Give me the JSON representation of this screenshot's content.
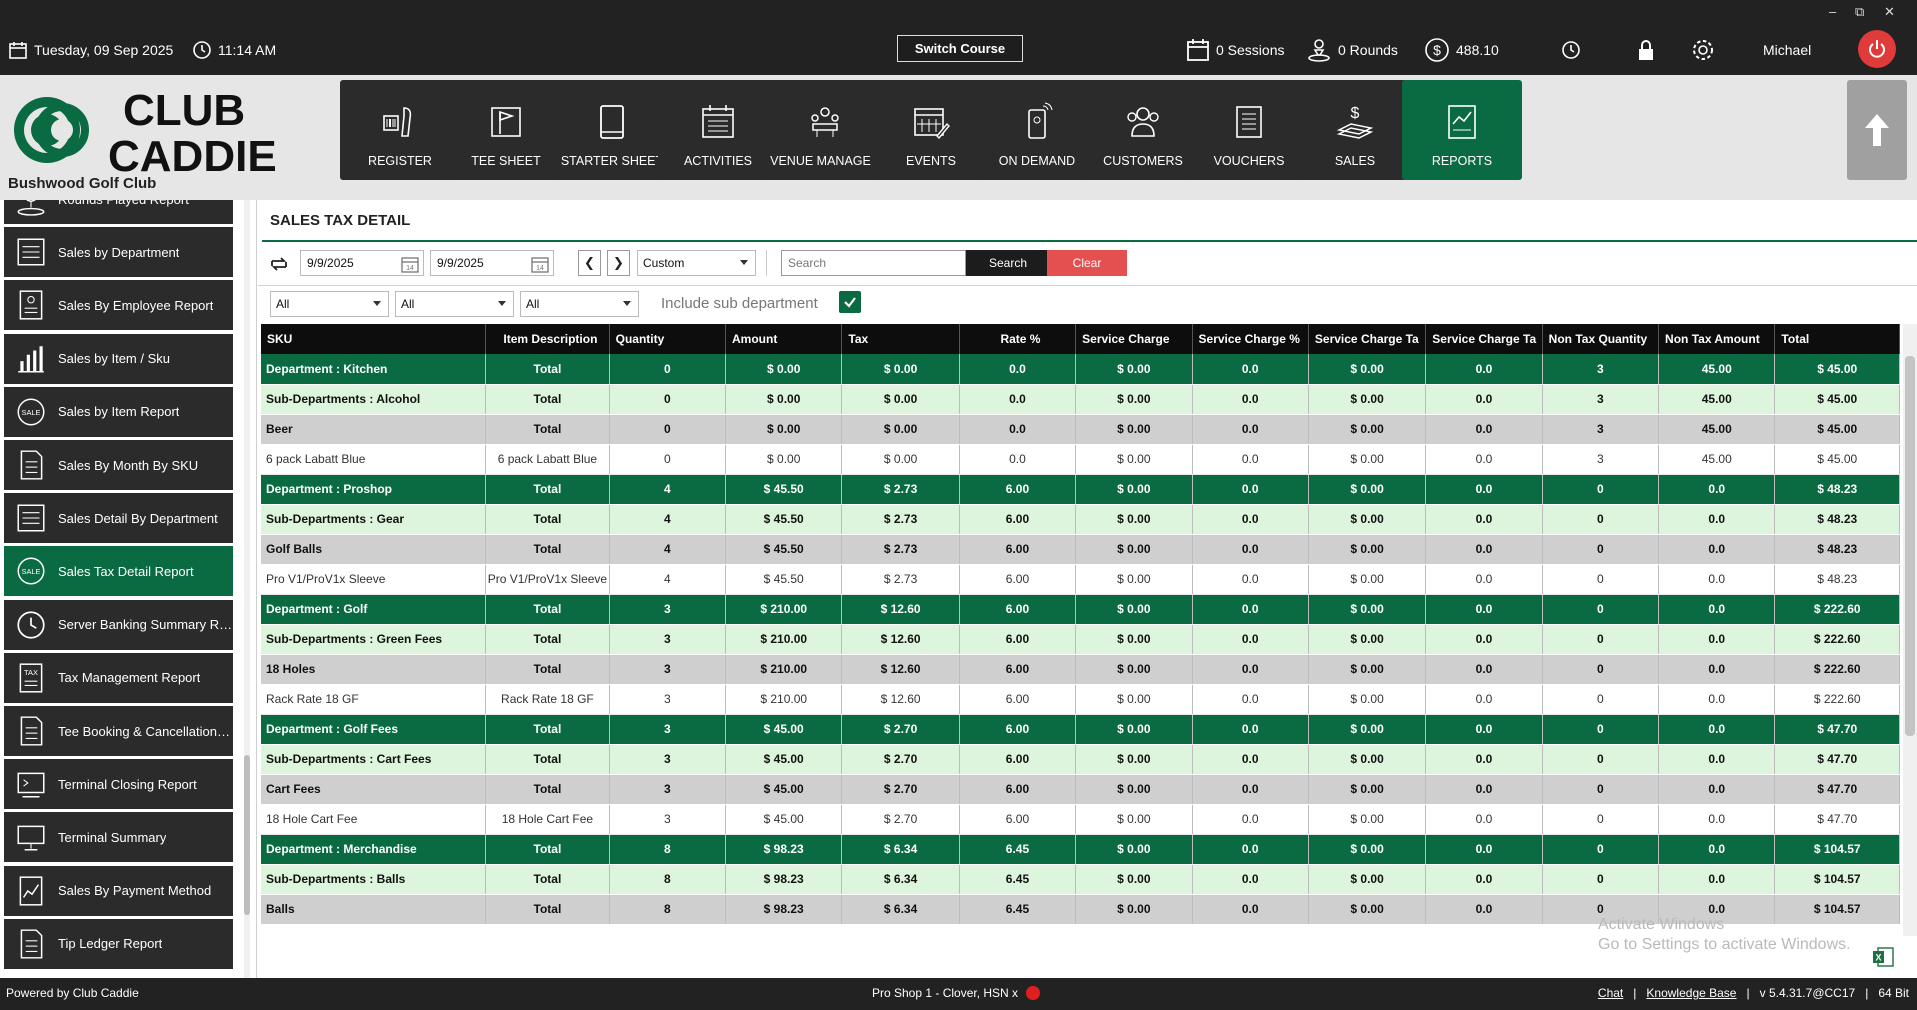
{
  "topbar": {
    "date": "Tuesday,  09 Sep 2025",
    "time": "11:14 AM",
    "switch_course": "Switch Course",
    "sessions": "0 Sessions",
    "rounds": "0 Rounds",
    "balance": "488.10",
    "user": "Michael"
  },
  "brand": {
    "logo_line1": "CLUB",
    "logo_line2": "CADDIE",
    "club_name": "Bushwood Golf Club"
  },
  "nav": [
    {
      "label": "REGISTER",
      "icon": "barcode-scanner-icon"
    },
    {
      "label": "TEE SHEET",
      "icon": "flag-icon"
    },
    {
      "label": "STARTER SHEET",
      "icon": "tablet-icon"
    },
    {
      "label": "ACTIVITIES",
      "icon": "calendar-list-icon"
    },
    {
      "label": "VENUE MANAGER",
      "icon": "venue-icon"
    },
    {
      "label": "EVENTS",
      "icon": "events-calendar-icon"
    },
    {
      "label": "ON DEMAND",
      "icon": "mobile-order-icon"
    },
    {
      "label": "CUSTOMERS",
      "icon": "customers-icon"
    },
    {
      "label": "VOUCHERS",
      "icon": "voucher-icon"
    },
    {
      "label": "SALES",
      "icon": "sales-icon"
    },
    {
      "label": "REPORTS",
      "icon": "reports-icon"
    }
  ],
  "sidebar": {
    "items": [
      {
        "label": "Rounds Played Report",
        "icon": "golf-ball-icon"
      },
      {
        "label": "Sales by Department",
        "icon": "list-icon"
      },
      {
        "label": "Sales By Employee Report",
        "icon": "employee-report-icon"
      },
      {
        "label": "Sales by Item / Sku",
        "icon": "bar-chart-icon"
      },
      {
        "label": "Sales by Item Report",
        "icon": "sale-tag-icon"
      },
      {
        "label": "Sales By Month By SKU",
        "icon": "document-icon"
      },
      {
        "label": "Sales Detail By Department",
        "icon": "list-icon"
      },
      {
        "label": "Sales Tax Detail Report",
        "icon": "sale-tag-icon"
      },
      {
        "label": "Server Banking Summary Rep...",
        "icon": "clock-icon"
      },
      {
        "label": "Tax Management Report",
        "icon": "tax-icon"
      },
      {
        "label": "Tee Booking & Cancellation R...",
        "icon": "document-icon"
      },
      {
        "label": "Terminal Closing Report",
        "icon": "terminal-icon"
      },
      {
        "label": "Terminal Summary",
        "icon": "monitor-icon"
      },
      {
        "label": "Sales By Payment Method",
        "icon": "chart-doc-icon"
      },
      {
        "label": "Tip Ledger Report",
        "icon": "document-icon"
      }
    ]
  },
  "page": {
    "title": "SALES TAX DETAIL",
    "date_from": "9/9/2025",
    "date_to": "9/9/2025",
    "range": "Custom",
    "search_placeholder": "Search",
    "search_btn": "Search",
    "clear_btn": "Clear",
    "filter1": "All",
    "filter2": "All",
    "filter3": "All",
    "include_sub": "Include sub department"
  },
  "table": {
    "columns": [
      "SKU",
      "Item Description",
      "Quantity",
      "Amount",
      "Tax",
      "Rate %",
      "Service Charge",
      "Service Charge %",
      "Service Charge Ta",
      "Service Charge Ta",
      "Non Tax Quantity",
      "Non Tax Amount",
      "Total"
    ],
    "rows": [
      {
        "type": "dept",
        "cells": [
          "Department : Kitchen",
          "Total",
          "0",
          "$ 0.00",
          "$ 0.00",
          "0.0",
          "$ 0.00",
          "0.0",
          "$ 0.00",
          "0.0",
          "3",
          "45.00",
          "$ 45.00"
        ]
      },
      {
        "type": "subdept",
        "cells": [
          "Sub-Departments : Alcohol",
          "Total",
          "0",
          "$ 0.00",
          "$ 0.00",
          "0.0",
          "$ 0.00",
          "0.0",
          "$ 0.00",
          "0.0",
          "3",
          "45.00",
          "$ 45.00"
        ]
      },
      {
        "type": "cat",
        "cells": [
          "Beer",
          "Total",
          "0",
          "$ 0.00",
          "$ 0.00",
          "0.0",
          "$ 0.00",
          "0.0",
          "$ 0.00",
          "0.0",
          "3",
          "45.00",
          "$ 45.00"
        ]
      },
      {
        "type": "item",
        "cells": [
          "6 pack Labatt Blue",
          "6 pack Labatt Blue",
          "0",
          "$ 0.00",
          "$ 0.00",
          "0.0",
          "$ 0.00",
          "0.0",
          "$ 0.00",
          "0.0",
          "3",
          "45.00",
          "$ 45.00"
        ]
      },
      {
        "type": "dept",
        "cells": [
          "Department : Proshop",
          "Total",
          "4",
          "$ 45.50",
          "$ 2.73",
          "6.00",
          "$ 0.00",
          "0.0",
          "$ 0.00",
          "0.0",
          "0",
          "0.0",
          "$ 48.23"
        ]
      },
      {
        "type": "subdept",
        "cells": [
          "Sub-Departments : Gear",
          "Total",
          "4",
          "$ 45.50",
          "$ 2.73",
          "6.00",
          "$ 0.00",
          "0.0",
          "$ 0.00",
          "0.0",
          "0",
          "0.0",
          "$ 48.23"
        ]
      },
      {
        "type": "cat",
        "cells": [
          "Golf Balls",
          "Total",
          "4",
          "$ 45.50",
          "$ 2.73",
          "6.00",
          "$ 0.00",
          "0.0",
          "$ 0.00",
          "0.0",
          "0",
          "0.0",
          "$ 48.23"
        ]
      },
      {
        "type": "item",
        "cells": [
          "Pro V1/ProV1x Sleeve",
          "Pro V1/ProV1x Sleeve",
          "4",
          "$ 45.50",
          "$ 2.73",
          "6.00",
          "$ 0.00",
          "0.0",
          "$ 0.00",
          "0.0",
          "0",
          "0.0",
          "$ 48.23"
        ]
      },
      {
        "type": "dept",
        "cells": [
          "Department : Golf",
          "Total",
          "3",
          "$ 210.00",
          "$ 12.60",
          "6.00",
          "$ 0.00",
          "0.0",
          "$ 0.00",
          "0.0",
          "0",
          "0.0",
          "$ 222.60"
        ]
      },
      {
        "type": "subdept",
        "cells": [
          "Sub-Departments : Green Fees",
          "Total",
          "3",
          "$ 210.00",
          "$ 12.60",
          "6.00",
          "$ 0.00",
          "0.0",
          "$ 0.00",
          "0.0",
          "0",
          "0.0",
          "$ 222.60"
        ]
      },
      {
        "type": "cat",
        "cells": [
          "18 Holes",
          "Total",
          "3",
          "$ 210.00",
          "$ 12.60",
          "6.00",
          "$ 0.00",
          "0.0",
          "$ 0.00",
          "0.0",
          "0",
          "0.0",
          "$ 222.60"
        ]
      },
      {
        "type": "item",
        "cells": [
          "Rack Rate 18 GF",
          "Rack Rate 18 GF",
          "3",
          "$ 210.00",
          "$ 12.60",
          "6.00",
          "$ 0.00",
          "0.0",
          "$ 0.00",
          "0.0",
          "0",
          "0.0",
          "$ 222.60"
        ]
      },
      {
        "type": "dept",
        "cells": [
          "Department : Golf Fees",
          "Total",
          "3",
          "$ 45.00",
          "$ 2.70",
          "6.00",
          "$ 0.00",
          "0.0",
          "$ 0.00",
          "0.0",
          "0",
          "0.0",
          "$ 47.70"
        ]
      },
      {
        "type": "subdept",
        "cells": [
          "Sub-Departments : Cart Fees",
          "Total",
          "3",
          "$ 45.00",
          "$ 2.70",
          "6.00",
          "$ 0.00",
          "0.0",
          "$ 0.00",
          "0.0",
          "0",
          "0.0",
          "$ 47.70"
        ]
      },
      {
        "type": "cat",
        "cells": [
          "Cart Fees",
          "Total",
          "3",
          "$ 45.00",
          "$ 2.70",
          "6.00",
          "$ 0.00",
          "0.0",
          "$ 0.00",
          "0.0",
          "0",
          "0.0",
          "$ 47.70"
        ]
      },
      {
        "type": "item",
        "cells": [
          "18 Hole Cart Fee",
          "18 Hole Cart Fee",
          "3",
          "$ 45.00",
          "$ 2.70",
          "6.00",
          "$ 0.00",
          "0.0",
          "$ 0.00",
          "0.0",
          "0",
          "0.0",
          "$ 47.70"
        ]
      },
      {
        "type": "dept",
        "cells": [
          "Department : Merchandise",
          "Total",
          "8",
          "$ 98.23",
          "$ 6.34",
          "6.45",
          "$ 0.00",
          "0.0",
          "$ 0.00",
          "0.0",
          "0",
          "0.0",
          "$ 104.57"
        ]
      },
      {
        "type": "subdept",
        "cells": [
          "Sub-Departments : Balls",
          "Total",
          "8",
          "$ 98.23",
          "$ 6.34",
          "6.45",
          "$ 0.00",
          "0.0",
          "$ 0.00",
          "0.0",
          "0",
          "0.0",
          "$ 104.57"
        ]
      },
      {
        "type": "cat",
        "cells": [
          "Balls",
          "Total",
          "8",
          "$ 98.23",
          "$ 6.34",
          "6.45",
          "$ 0.00",
          "0.0",
          "$ 0.00",
          "0.0",
          "0",
          "0.0",
          "$ 104.57"
        ]
      }
    ]
  },
  "watermark": {
    "line1": "Activate Windows",
    "line2": "Go to Settings to activate Windows."
  },
  "footer": {
    "powered": "Powered by Club Caddie",
    "terminal": "Pro Shop 1 - Clover, HSN x",
    "chat": "Chat",
    "kb": "Knowledge Base",
    "version": "v 5.4.31.7@CC17",
    "bits": "64 Bit",
    "sep": "|"
  },
  "colors": {
    "brand_green": "#0a6b43",
    "subdept_green": "#dcf5dc",
    "clear_red": "#e4504f",
    "dark": "#222222"
  }
}
